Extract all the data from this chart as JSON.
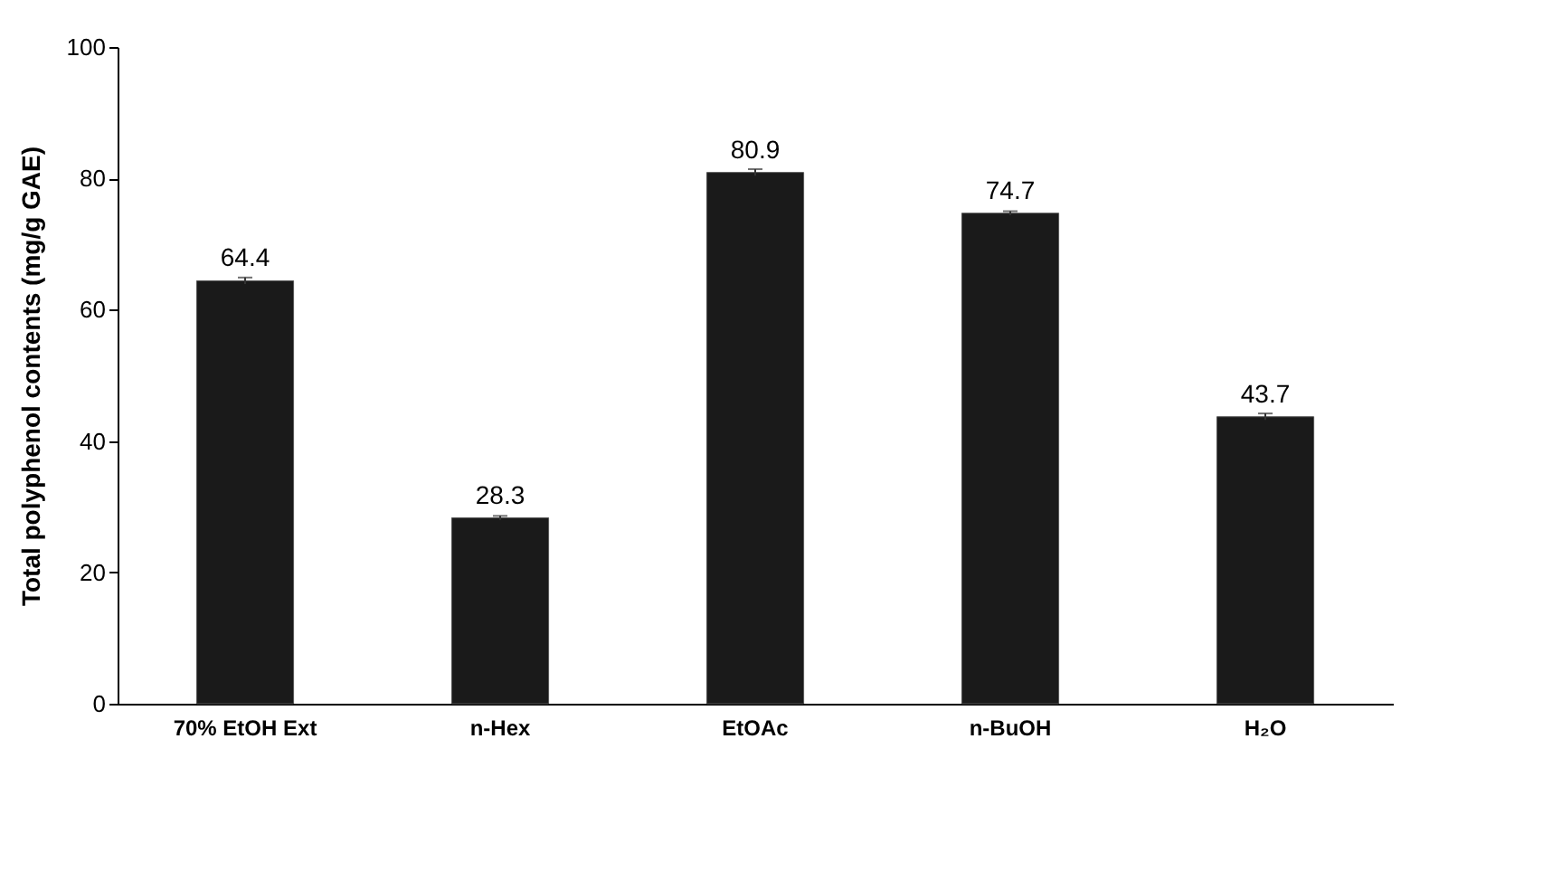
{
  "chart_data": {
    "type": "bar",
    "ylabel": "Total polyphenol contents (mg/g GAE)",
    "categories": [
      "70% EtOH Ext",
      "n-Hex",
      "EtOAc",
      "n-BuOH",
      "H₂O"
    ],
    "values": [
      64.4,
      28.3,
      80.9,
      74.7,
      43.7
    ],
    "errors": [
      0.5,
      0.3,
      0.5,
      0.3,
      0.5
    ],
    "color": "#1a1a1a",
    "ylim": [
      0,
      100
    ],
    "yticks": [
      0,
      20,
      40,
      60,
      80,
      100
    ],
    "grid": false,
    "data_labels": true
  }
}
